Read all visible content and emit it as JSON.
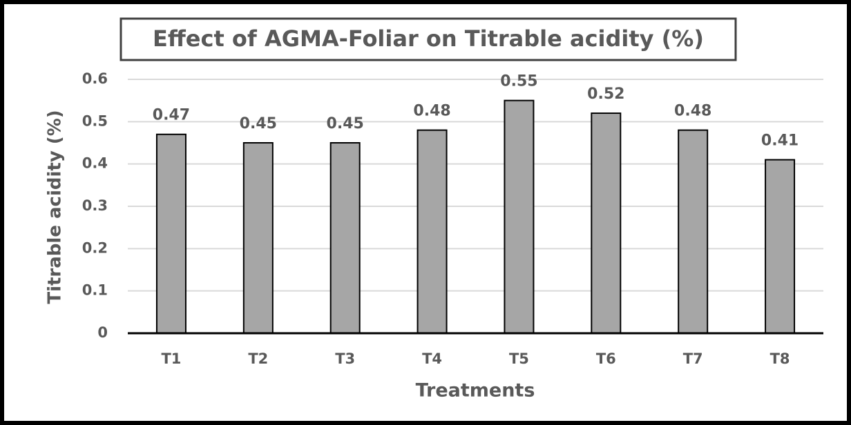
{
  "chart_data": {
    "type": "bar",
    "title": "Effect of AGMA-Foliar on Titrable acidity (%)",
    "x_label": "Treatments",
    "y_label": "Titrable acidity (%)",
    "categories": [
      "T1",
      "T2",
      "T3",
      "T4",
      "T5",
      "T6",
      "T7",
      "T8"
    ],
    "values": [
      0.47,
      0.45,
      0.45,
      0.48,
      0.55,
      0.52,
      0.48,
      0.41
    ],
    "color": "#a6a6a6",
    "ylim": [
      0,
      0.6
    ],
    "yticks": [
      0,
      0.1,
      0.2,
      0.3,
      0.4,
      0.5,
      0.6
    ],
    "grid": true
  }
}
